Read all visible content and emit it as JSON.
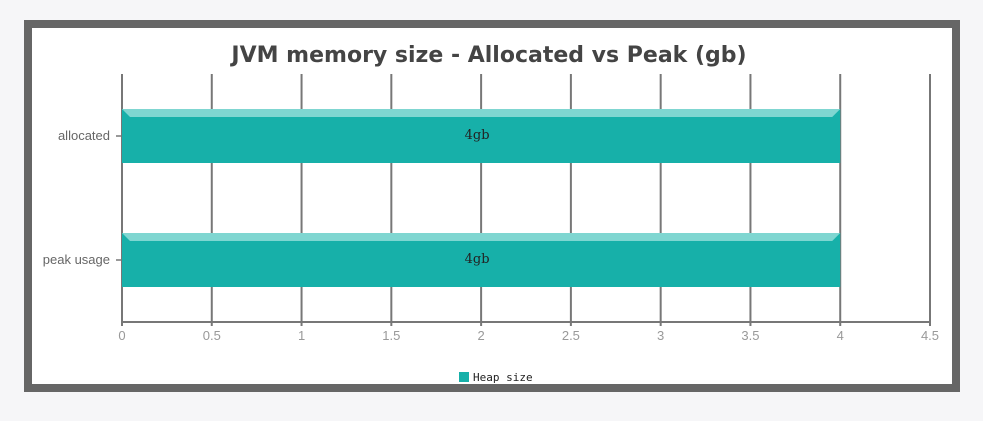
{
  "chart_data": {
    "type": "bar",
    "orientation": "horizontal",
    "title": "JVM memory size - Allocated vs Peak (gb)",
    "categories": [
      "allocated",
      "peak usage"
    ],
    "series": [
      {
        "name": "Heap size",
        "values": [
          4,
          4
        ],
        "color": "#17b0a9",
        "data_labels": [
          "4gb",
          "4gb"
        ]
      }
    ],
    "xlim": [
      0,
      4.5
    ],
    "x_ticks": [
      "0",
      "0.5",
      "1",
      "1.5",
      "2",
      "2.5",
      "3",
      "3.5",
      "4",
      "4.5"
    ],
    "grid": true,
    "legend_position": "bottom-center",
    "colors": {
      "frame": "#666666",
      "grid": "#777777",
      "bar": "#17b0a9",
      "bar_highlight": "#7fd6d1"
    }
  }
}
